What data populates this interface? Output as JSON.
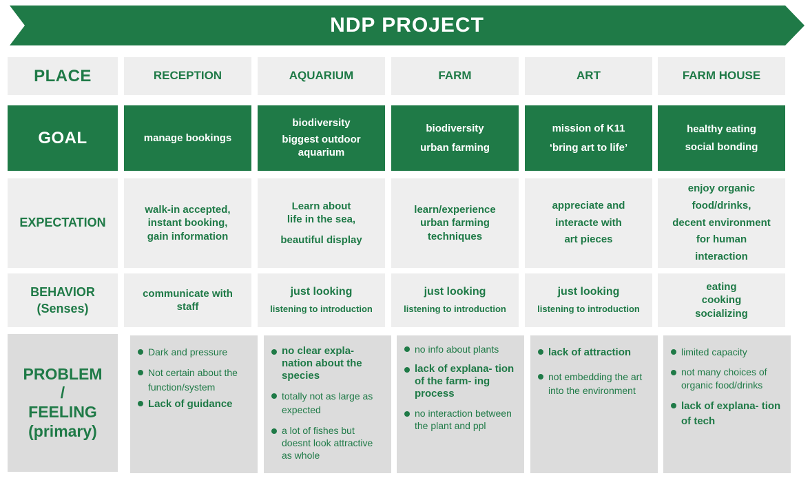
{
  "title": "NDP PROJECT",
  "rows": {
    "place": "PLACE",
    "goal": "GOAL",
    "expectation": "EXPECTATION",
    "behavior": [
      "BEHAVIOR",
      "(Senses)"
    ],
    "problem": [
      "PROBLEM",
      "/",
      "FEELING",
      "(primary)"
    ]
  },
  "places": [
    "RECEPTION",
    "AQUARIUM",
    "FARM",
    "ART",
    "FARM HOUSE"
  ],
  "goals": [
    [
      "manage bookings"
    ],
    [
      "biodiversity",
      "biggest outdoor aquarium"
    ],
    [
      "biodiversity",
      "urban farming"
    ],
    [
      "mission of K11",
      "‘bring art to life’"
    ],
    [
      "healthy eating",
      "social bonding"
    ]
  ],
  "expectations": [
    [
      "walk-in accepted,",
      "instant booking,",
      "gain information"
    ],
    [
      "Learn about",
      "life in the sea,",
      "beautiful display"
    ],
    [
      "learn/experience",
      "urban farming",
      "techniques"
    ],
    [
      "appreciate and",
      "interacte with",
      "art pieces"
    ],
    [
      "enjoy organic",
      "food/drinks,",
      "decent environment",
      "for human",
      "interaction"
    ]
  ],
  "behaviors": [
    [
      "communicate with",
      "staff"
    ],
    [
      "just looking",
      "listening to introduction"
    ],
    [
      "just looking",
      "listening to introduction"
    ],
    [
      "just looking",
      "listening to introduction"
    ],
    [
      "eating",
      "cooking",
      "socializing"
    ]
  ],
  "problems": [
    [
      {
        "text": "Dark and pressure",
        "bold": false
      },
      {
        "text": "Not certain about the function/system",
        "bold": false
      },
      {
        "text": "Lack of guidance",
        "bold": true
      }
    ],
    [
      {
        "text": "no clear expla- nation about the species",
        "bold": true
      },
      {
        "text": "totally not as large as expected",
        "bold": false
      },
      {
        "text": "a lot of fishes but doesnt look attractive as whole",
        "bold": false
      }
    ],
    [
      {
        "text": "no info about plants",
        "bold": false
      },
      {
        "text": "lack of explana- tion of the farm- ing process",
        "bold": true
      },
      {
        "text": "no interaction between the plant and ppl",
        "bold": false
      }
    ],
    [
      {
        "text": "lack of attraction",
        "bold": true
      },
      {
        "text": "not embedding the art into the environment",
        "bold": false
      }
    ],
    [
      {
        "text": "limited capacity",
        "bold": false
      },
      {
        "text": "not many choices of organic food/drinks",
        "bold": false
      },
      {
        "text": "lack of explana- tion of tech",
        "bold": true
      }
    ]
  ]
}
